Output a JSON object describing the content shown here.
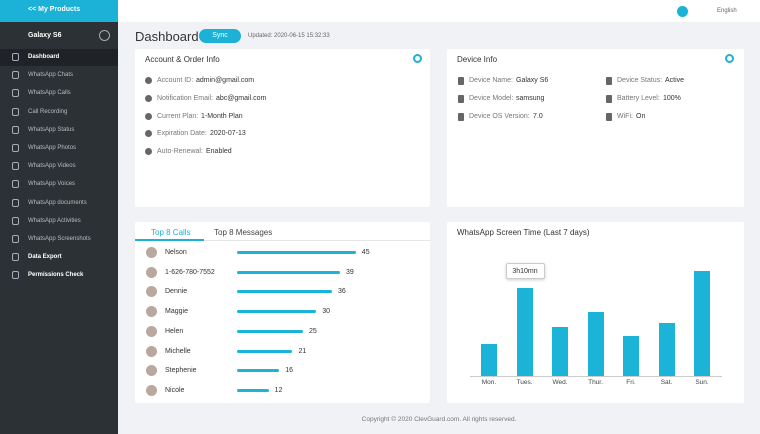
{
  "header": {
    "back_link": "<< My Products",
    "language": "English"
  },
  "sidebar": {
    "device": "Galaxy S6",
    "items": [
      "Dashboard",
      "WhatsApp Chats",
      "WhatsApp Calls",
      "Call Recording",
      "WhatsApp Status",
      "WhatsApp Photos",
      "WhatsApp Videos",
      "WhatsApp Voices",
      "WhatsApp documents",
      "WhatsApp Activities",
      "WhatsApp Screenshots",
      "Data Export",
      "Permissions Check"
    ]
  },
  "page": {
    "title": "Dashboard",
    "sync_button": "Sync",
    "updated": "Updated: 2020-06-15 15:32:33"
  },
  "account_card": {
    "title": "Account & Order Info",
    "rows": [
      {
        "label": "Account ID:",
        "value": "admin@gmail.com"
      },
      {
        "label": "Notification Email:",
        "value": "abc@gmail.com"
      },
      {
        "label": "Current Plan:",
        "value": "1-Month Plan"
      },
      {
        "label": "Expiration Date:",
        "value": "2020-07-13"
      },
      {
        "label": "Auto-Renewal:",
        "value": "Enabled"
      }
    ]
  },
  "device_card": {
    "title": "Device Info",
    "rows": [
      {
        "label": "Device Name:",
        "value": "Galaxy S6"
      },
      {
        "label": "Device Model:",
        "value": "samsung"
      },
      {
        "label": "Device OS Version:",
        "value": "7.0"
      },
      {
        "label": "Device Status:",
        "value": "Active"
      },
      {
        "label": "Battery Level:",
        "value": "100%"
      },
      {
        "label": "WiFi:",
        "value": "On"
      }
    ]
  },
  "calls_card": {
    "tabs": [
      "Top 8 Calls",
      "Top 8 Messages"
    ],
    "names": [
      "Nelson",
      "1-626-780-7552",
      "Dennie",
      "Maggie",
      "Helen",
      "Michelle",
      "Stephenie",
      "Nicole"
    ],
    "values": [
      45,
      39,
      36,
      30,
      25,
      21,
      16,
      12
    ],
    "color": "#1bb4d8"
  },
  "screen_time": {
    "title": "WhatsApp Screen Time (Last 7 days)",
    "categories": [
      "Mon.",
      "Tues.",
      "Wed.",
      "Thur.",
      "Fri.",
      "Sat.",
      "Sun."
    ],
    "values": [
      69,
      190,
      106,
      138,
      86,
      114,
      227
    ],
    "value_labels": [
      null,
      "3h10mn",
      null,
      null,
      null,
      null,
      null
    ],
    "color": "#1bb4d8"
  },
  "footer": "Copyright © 2020 ClevGuard.com. All rights reserved."
}
